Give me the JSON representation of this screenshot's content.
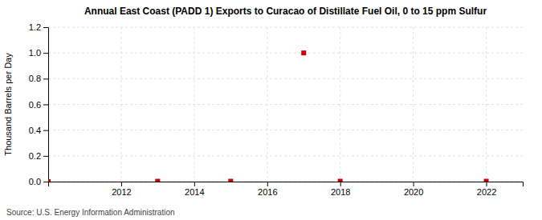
{
  "chart_data": {
    "type": "scatter",
    "title": "Annual East Coast (PADD 1) Exports to Curacao of Distillate Fuel Oil, 0 to 15 ppm Sulfur",
    "ylabel": "Thousand Barrels per Day",
    "source": "Source: U.S. Energy Information Administration",
    "x": [
      2010,
      2013,
      2015,
      2017,
      2018,
      2022
    ],
    "values": [
      0.0,
      0.003,
      0.003,
      1.0,
      0.003,
      0.003
    ],
    "color": "#cc0000",
    "marker": "square",
    "xlim": [
      2010.0,
      2023.0
    ],
    "ylim": [
      0.0,
      1.2
    ],
    "xticks": [
      2012,
      2014,
      2016,
      2018,
      2020,
      2022
    ],
    "yticks": [
      {
        "value": 0.0,
        "label": "0.0"
      },
      0.2,
      0.4,
      0.6,
      0.8,
      {
        "value": 1.0,
        "label": "1.0"
      },
      1.2
    ],
    "grid": true
  }
}
